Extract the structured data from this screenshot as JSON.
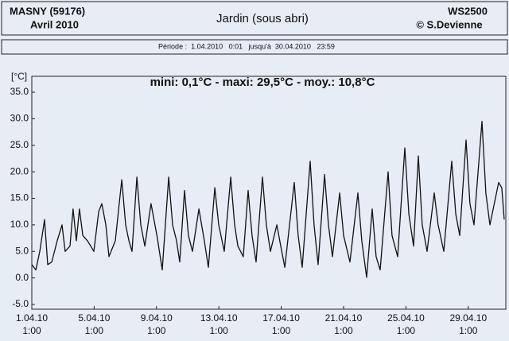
{
  "header": {
    "station": "MASNY (59176)",
    "month": "Avril 2010",
    "title": "Jardin (sous abri)",
    "device": "WS2500",
    "author": "© S.Devienne"
  },
  "period": "Période :  1.04.2010   0:01   jusqu'à  30.04.2010   23:59",
  "chart_data": {
    "type": "line",
    "y_label": "[°C]",
    "annotation": "mini: 0,1°C - maxi: 29,5°C - moy.: 10,8°C",
    "color": "#111111",
    "grid": false,
    "ylim": [
      -5.9,
      38
    ],
    "yticks": [
      {
        "value": -5,
        "label": "-5.0"
      },
      {
        "value": 0,
        "label": "0.0"
      },
      {
        "value": 5,
        "label": "5.0"
      },
      {
        "value": 10,
        "label": "10.0"
      },
      {
        "value": 15,
        "label": "15.0"
      },
      {
        "value": 20,
        "label": "20.0"
      },
      {
        "value": 25,
        "label": "25.0"
      },
      {
        "value": 30,
        "label": "30.0"
      },
      {
        "value": 35,
        "label": "35.0"
      }
    ],
    "xlim": [
      1.0417,
      31.45
    ],
    "xticks": [
      {
        "value": 1.0417,
        "label": "1.04.10\n1:00"
      },
      {
        "value": 5.0417,
        "label": "5.04.10\n1:00"
      },
      {
        "value": 9.0417,
        "label": "9.04.10\n1:00"
      },
      {
        "value": 13.0417,
        "label": "13.04.10\n1:00"
      },
      {
        "value": 17.0417,
        "label": "17.04.10\n1:00"
      },
      {
        "value": 21.0417,
        "label": "21.04.10\n1:00"
      },
      {
        "value": 25.0417,
        "label": "25.04.10\n1:00"
      },
      {
        "value": 29.0417,
        "label": "29.04.10\n1:00"
      }
    ],
    "x": [
      1.04,
      1.3,
      1.55,
      1.86,
      2.06,
      2.32,
      2.67,
      2.98,
      3.18,
      3.49,
      3.69,
      3.9,
      4.1,
      4.31,
      4.61,
      4.82,
      5.02,
      5.33,
      5.53,
      5.79,
      5.99,
      6.4,
      6.81,
      7.06,
      7.27,
      7.47,
      7.78,
      8.03,
      8.29,
      8.69,
      9.1,
      9.41,
      9.82,
      10.07,
      10.33,
      10.53,
      10.84,
      11.09,
      11.35,
      11.76,
      12.11,
      12.37,
      12.78,
      13.03,
      13.39,
      13.8,
      14.05,
      14.26,
      14.61,
      14.92,
      15.17,
      15.43,
      15.84,
      16.09,
      16.35,
      16.76,
      17.01,
      17.27,
      17.88,
      18.13,
      18.39,
      18.9,
      19.15,
      19.41,
      19.82,
      20.07,
      20.33,
      20.79,
      21.04,
      21.45,
      21.96,
      22.21,
      22.52,
      22.88,
      23.13,
      23.39,
      23.9,
      24.15,
      24.51,
      24.97,
      25.23,
      25.53,
      25.84,
      26.09,
      26.4,
      26.86,
      27.11,
      27.47,
      27.98,
      28.24,
      28.49,
      28.9,
      29.15,
      29.41,
      29.92,
      30.17,
      30.43,
      30.99,
      31.19,
      31.35
    ],
    "values": [
      2.5,
      1.5,
      5,
      11,
      2.5,
      3,
      7,
      10,
      5,
      6,
      13,
      7,
      13,
      8,
      7,
      6,
      5,
      12.5,
      14,
      10,
      4,
      7,
      18.5,
      10,
      7,
      5,
      19,
      10,
      6,
      14,
      7.5,
      1.5,
      19,
      10,
      7,
      3,
      16.5,
      8,
      5,
      13,
      7,
      2,
      17,
      10,
      5,
      19,
      10,
      6,
      4,
      16.5,
      8,
      3,
      19,
      10,
      5,
      10,
      6,
      2,
      18,
      8,
      2,
      22,
      10,
      2.5,
      19.5,
      10,
      4,
      16,
      8,
      3,
      16,
      7,
      0.1,
      13,
      4,
      1.5,
      20,
      8,
      4,
      24.5,
      12,
      6,
      23,
      10,
      5,
      16,
      10,
      5,
      22,
      12,
      8,
      26,
      14,
      10,
      29.5,
      16,
      10,
      18,
      17,
      11
    ]
  }
}
